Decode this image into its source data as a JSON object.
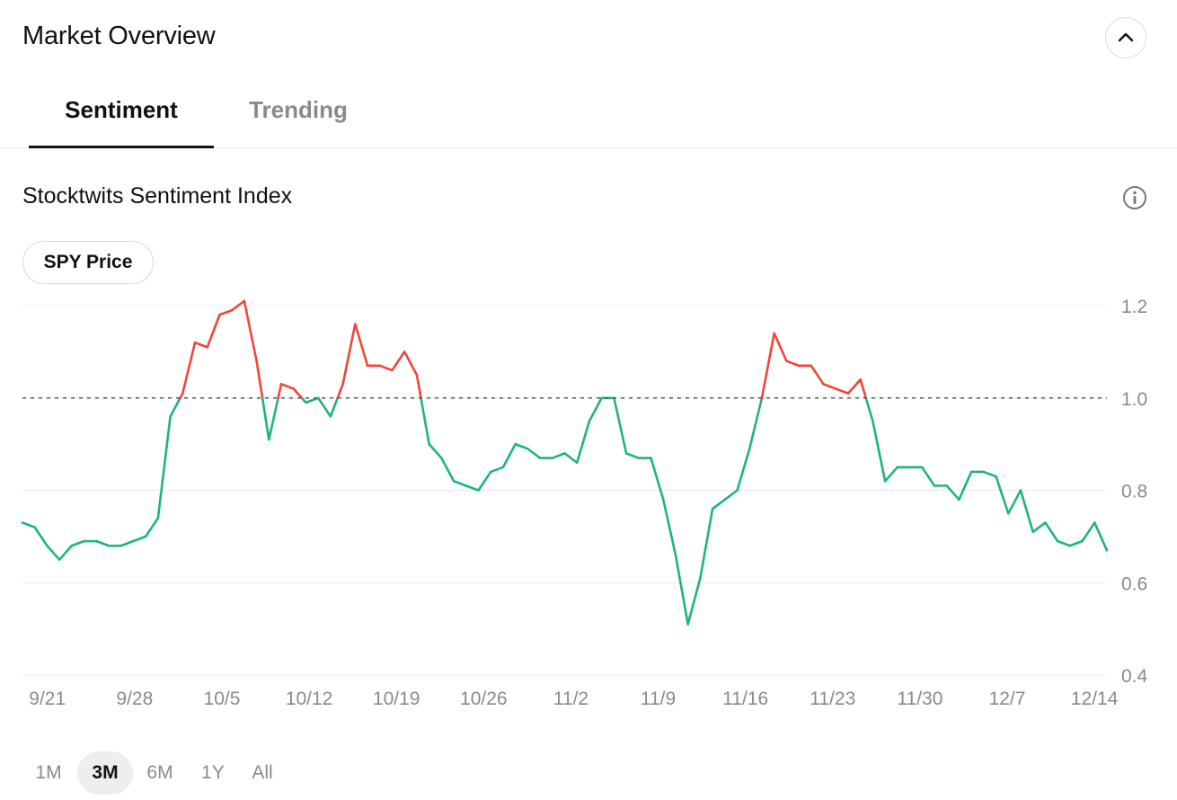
{
  "header": {
    "title": "Market Overview",
    "collapse_icon": "chevron-up-icon"
  },
  "tabs": [
    {
      "label": "Sentiment",
      "active": true
    },
    {
      "label": "Trending",
      "active": false
    }
  ],
  "section": {
    "title": "Stocktwits Sentiment Index",
    "info_icon": "info-icon"
  },
  "toggle": {
    "label": "SPY Price"
  },
  "time_ranges": [
    {
      "label": "1M",
      "active": false
    },
    {
      "label": "3M",
      "active": true
    },
    {
      "label": "6M",
      "active": false
    },
    {
      "label": "1Y",
      "active": false
    },
    {
      "label": "All",
      "active": false
    }
  ],
  "colors": {
    "above": "#f0453a",
    "below": "#1fb57a",
    "baseline": "#555555",
    "grid": "#ececec",
    "axis_text": "#8a8a8a"
  },
  "chart_data": {
    "type": "line",
    "title": "Stocktwits Sentiment Index",
    "xlabel": "",
    "ylabel": "",
    "x_ticks": [
      "9/21",
      "9/28",
      "10/5",
      "10/12",
      "10/19",
      "10/26",
      "11/2",
      "11/9",
      "11/16",
      "11/23",
      "11/30",
      "12/7",
      "12/14"
    ],
    "x_first": "9/19",
    "x_last": "12/15",
    "y_ticks": [
      "0.4",
      "0.6",
      "0.8",
      "1.0",
      "1.2"
    ],
    "ylim": [
      0.4,
      1.2
    ],
    "reference_line": 1.0,
    "grid": "horizontal",
    "y_axis_position": "right",
    "color_rule": "red above 1.0, green below 1.0",
    "series": [
      {
        "values": [
          0.73,
          0.72,
          0.68,
          0.65,
          0.68,
          0.69,
          0.69,
          0.68,
          0.68,
          0.69,
          0.7,
          0.74,
          0.96,
          1.01,
          1.12,
          1.11,
          1.18,
          1.19,
          1.21,
          1.08,
          0.91,
          1.03,
          1.02,
          0.99,
          1.0,
          0.96,
          1.03,
          1.16,
          1.07,
          1.07,
          1.06,
          1.1,
          1.05,
          0.9,
          0.87,
          0.82,
          0.81,
          0.8,
          0.84,
          0.85,
          0.9,
          0.89,
          0.87,
          0.87,
          0.88,
          0.86,
          0.95,
          1.0,
          1.0,
          0.88,
          0.87,
          0.87,
          0.78,
          0.66,
          0.51,
          0.61,
          0.76,
          0.78,
          0.8,
          0.89,
          1.0,
          1.14,
          1.08,
          1.07,
          1.07,
          1.03,
          1.02,
          1.01,
          1.04,
          0.95,
          0.82,
          0.85,
          0.85,
          0.85,
          0.81,
          0.81,
          0.78,
          0.84,
          0.84,
          0.83,
          0.75,
          0.8,
          0.71,
          0.73,
          0.69,
          0.68,
          0.69,
          0.73,
          0.67
        ]
      }
    ]
  }
}
